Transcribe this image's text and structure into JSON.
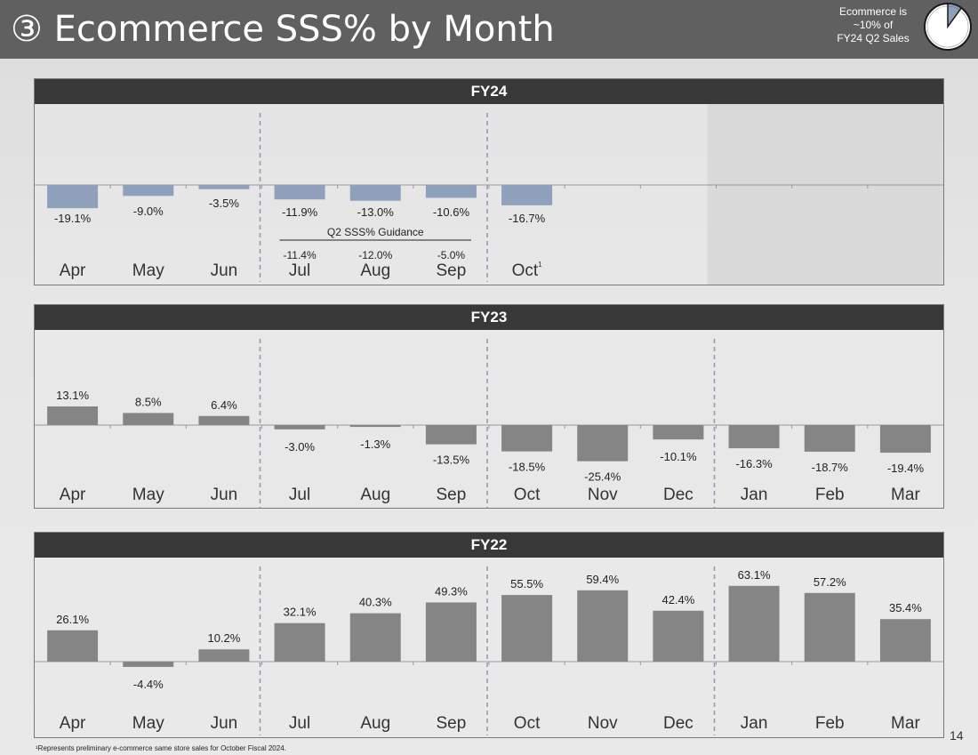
{
  "header": {
    "title": "③ Ecommerce SSS% by Month",
    "note_lines": [
      "Ecommerce is",
      "~10% of",
      "FY24 Q2 Sales"
    ],
    "pie_share": 0.1
  },
  "colors": {
    "title_bar": "#606060",
    "panel_head": "#383838",
    "fy24_bar": "#8fa0bd",
    "bar": "#858585",
    "divider": "#8a9ab0"
  },
  "chart_data": [
    {
      "type": "bar",
      "title": "FY24",
      "categories": [
        "Apr",
        "May",
        "Jun",
        "Jul",
        "Aug",
        "Sep",
        "Oct",
        "",
        "",
        "",
        "",
        ""
      ],
      "values": [
        -19.1,
        -9.0,
        -3.5,
        -11.9,
        -13.0,
        -10.6,
        -16.7,
        null,
        null,
        null,
        null,
        null
      ],
      "value_labels": [
        "-19.1%",
        "-9.0%",
        "-3.5%",
        "-11.9%",
        "-13.0%",
        "-10.6%",
        "-16.7%",
        "",
        "",
        "",
        "",
        ""
      ],
      "superscripts": [
        "",
        "",
        "",
        "",
        "",
        "",
        "1",
        "",
        "",
        "",
        "",
        ""
      ],
      "guidance": {
        "label": "Q2 SSS% Guidance",
        "values": [
          "-11.4%",
          "-12.0%",
          "-5.0%"
        ],
        "category_start": 3
      },
      "ylim": [
        -60,
        60
      ],
      "quarter_dividers_after": [
        3,
        6
      ],
      "grey_out_from": 9
    },
    {
      "type": "bar",
      "title": "FY23",
      "categories": [
        "Apr",
        "May",
        "Jun",
        "Jul",
        "Aug",
        "Sep",
        "Oct",
        "Nov",
        "Dec",
        "Jan",
        "Feb",
        "Mar"
      ],
      "values": [
        13.1,
        8.5,
        6.4,
        -3.0,
        -1.3,
        -13.5,
        -18.5,
        -25.4,
        -10.1,
        -16.3,
        -18.7,
        -19.4
      ],
      "value_labels": [
        "13.1%",
        "8.5%",
        "6.4%",
        "-3.0%",
        "-1.3%",
        "-13.5%",
        "-18.5%",
        "-25.4%",
        "-10.1%",
        "-16.3%",
        "-18.7%",
        "-19.4%"
      ],
      "ylim": [
        -50,
        50
      ],
      "quarter_dividers_after": [
        3,
        6,
        9
      ]
    },
    {
      "type": "bar",
      "title": "FY22",
      "categories": [
        "Apr",
        "May",
        "Jun",
        "Jul",
        "Aug",
        "Sep",
        "Oct",
        "Nov",
        "Dec",
        "Jan",
        "Feb",
        "Mar"
      ],
      "values": [
        26.1,
        -4.4,
        10.2,
        32.1,
        40.3,
        49.3,
        55.5,
        59.4,
        42.4,
        63.1,
        57.2,
        35.4
      ],
      "value_labels": [
        "26.1%",
        "-4.4%",
        "10.2%",
        "32.1%",
        "40.3%",
        "49.3%",
        "55.5%",
        "59.4%",
        "42.4%",
        "63.1%",
        "57.2%",
        "35.4%"
      ],
      "ylim": [
        -40,
        80
      ],
      "quarter_dividers_after": [
        3,
        6,
        9
      ]
    }
  ],
  "footnote": "¹Represents preliminary e-commerce same store sales for October Fiscal 2024.",
  "page_number": "14"
}
